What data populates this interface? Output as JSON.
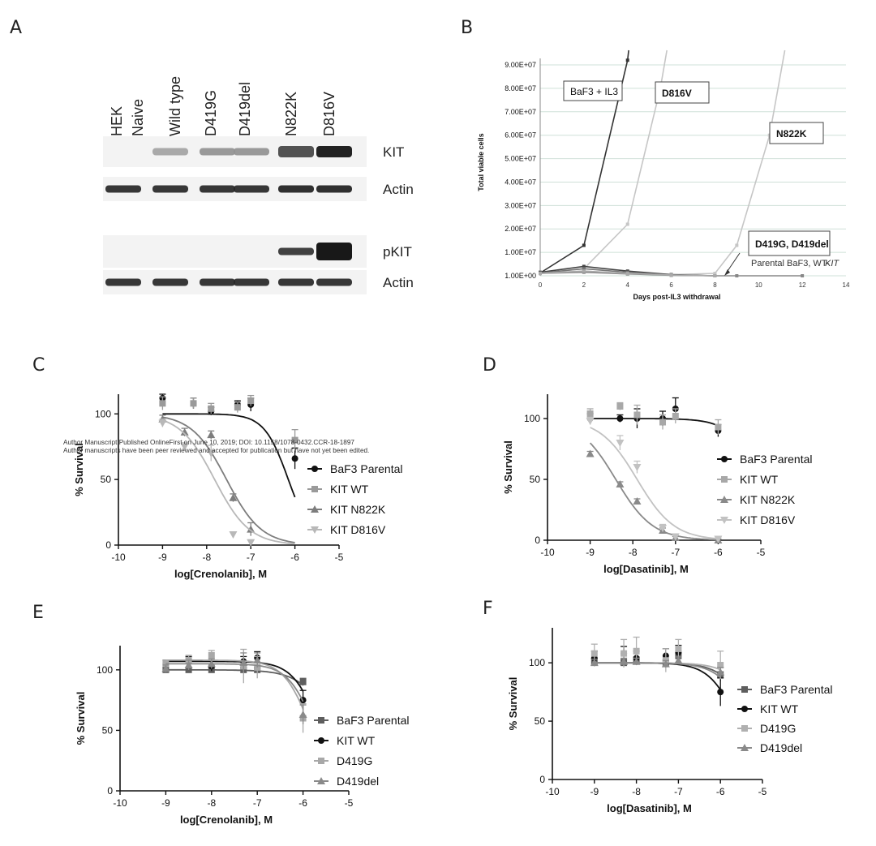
{
  "panel_labels": [
    "A",
    "B",
    "C",
    "D",
    "E",
    "F"
  ],
  "watermark": {
    "line1": "Author Manuscript Published OnlineFirst on June 10, 2019; DOI: 10.1158/1078-0432.CCR-18-1897",
    "line2": "Author manuscripts have been peer reviewed and accepted for publication but have not yet been edited."
  },
  "colors": {
    "black": "#111111",
    "dark": "#6a6a6a",
    "mid": "#8c8c8c",
    "light": "#b4b4b4",
    "lighter": "#cdcdcd"
  },
  "panelA": {
    "lanes": [
      "HEK Naive",
      "Wild type",
      "D419G",
      "D419del",
      "N822K",
      "D816V"
    ],
    "blots": [
      {
        "label": "KIT",
        "intensity": [
          0.0,
          0.3,
          0.38,
          0.38,
          0.72,
          0.95
        ]
      },
      {
        "label": "Actin",
        "intensity": [
          0.85,
          0.85,
          0.85,
          0.85,
          0.88,
          0.88
        ]
      },
      {
        "label": "pKIT",
        "intensity": [
          0.0,
          0.0,
          0.0,
          0.0,
          0.8,
          1.0
        ]
      },
      {
        "label": "Actin",
        "intensity": [
          0.85,
          0.85,
          0.85,
          0.85,
          0.85,
          0.85
        ]
      }
    ]
  },
  "chart_data": [
    {
      "panel": "B",
      "type": "line",
      "xlabel": "Days post-IL3 withdrawal",
      "ylabel": "Total viable cells",
      "xlim": [
        0,
        14
      ],
      "ylim": [
        1,
        90000000
      ],
      "xticks": [
        "0",
        "2",
        "4",
        "6",
        "8",
        "10",
        "12",
        "14"
      ],
      "yticks": [
        "1.00E+00",
        "1.00E+07",
        "2.00E+07",
        "3.00E+07",
        "4.00E+07",
        "5.00E+07",
        "6.00E+07",
        "7.00E+07",
        "8.00E+07",
        "9.00E+07"
      ],
      "annotations": [
        "BaF3 + IL3",
        "D816V",
        "N822K",
        "D419G, D419del"
      ],
      "annotation_line2": "Parental BaF3, WT-",
      "annotation_italic": "KIT",
      "series": [
        {
          "name": "BaF3 + IL3",
          "color": "#333333",
          "points": [
            [
              0,
              1200000
            ],
            [
              2,
              13000000
            ],
            [
              4,
              92000000
            ],
            [
              4.05,
              99000000
            ]
          ]
        },
        {
          "name": "D816V",
          "color": "#c6c6c6",
          "points": [
            [
              0,
              1200000
            ],
            [
              2,
              3000000
            ],
            [
              4,
              22000000
            ],
            [
              5.5,
              80000000
            ],
            [
              5.8,
              99000000
            ]
          ]
        },
        {
          "name": "N822K",
          "color": "#c6c6c6",
          "points": [
            [
              0,
              1200000
            ],
            [
              2,
              2000000
            ],
            [
              4,
              1000000
            ],
            [
              6,
              500000
            ],
            [
              8,
              1000000
            ],
            [
              9,
              13000000
            ],
            [
              10.5,
              60000000
            ],
            [
              11.2,
              99000000
            ]
          ]
        },
        {
          "name": "D419G",
          "color": "#444444",
          "points": [
            [
              0,
              1500000
            ],
            [
              2,
              4000000
            ],
            [
              4,
              2000000
            ],
            [
              6,
              500000
            ],
            [
              8,
              0
            ]
          ]
        },
        {
          "name": "D419del",
          "color": "#777777",
          "points": [
            [
              0,
              1200000
            ],
            [
              2,
              3000000
            ],
            [
              4,
              1500000
            ],
            [
              6,
              300000
            ],
            [
              8,
              0
            ]
          ]
        },
        {
          "name": "Parental BaF3",
          "color": "#888888",
          "points": [
            [
              0,
              1000000
            ],
            [
              2,
              1500000
            ],
            [
              4,
              800000
            ],
            [
              6,
              200000
            ],
            [
              8,
              0
            ],
            [
              9,
              0
            ],
            [
              12,
              0
            ]
          ]
        },
        {
          "name": "WT-KIT",
          "color": "#aaaaaa",
          "points": [
            [
              0,
              1000000
            ],
            [
              2,
              2000000
            ],
            [
              4,
              1000000
            ],
            [
              6,
              300000
            ],
            [
              8,
              0
            ]
          ]
        }
      ]
    },
    {
      "panel": "C",
      "type": "scatter",
      "xlabel": "log[Crenolanib], M",
      "ylabel": "% Survival",
      "xlim": [
        -10,
        -5
      ],
      "ylim": [
        0,
        115
      ],
      "xticks": [
        "-10",
        "-9",
        "-8",
        "-7",
        "-6",
        "-5"
      ],
      "yticks": [
        "0",
        "50",
        "100"
      ],
      "series": [
        {
          "name": "BaF3 Parental",
          "marker": "circle",
          "color": "#111111",
          "x": [
            -9,
            -8.3,
            -7.9,
            -7.3,
            -7,
            -6
          ],
          "y": [
            112,
            108,
            102,
            107,
            107,
            66
          ],
          "err": [
            4,
            4,
            3,
            3,
            5,
            8
          ],
          "fit": {
            "top": 100,
            "bottom": 0,
            "logic50": -6.15,
            "hill": 1.6
          }
        },
        {
          "name": "KIT WT",
          "marker": "square",
          "color": "#9a9a9a",
          "x": [
            -9,
            -8.3,
            -7.9,
            -7.3,
            -7,
            -6
          ],
          "y": [
            108,
            108,
            104,
            105,
            110,
            80
          ],
          "err": [
            5,
            4,
            4,
            4,
            4,
            8
          ],
          "fit": null
        },
        {
          "name": "KIT N822K",
          "marker": "triangle",
          "color": "#7d7d7d",
          "x": [
            -9,
            -8.5,
            -7.9,
            -7.4,
            -7
          ],
          "y": [
            96,
            86,
            84,
            36,
            12
          ],
          "err": [
            3,
            3,
            3,
            3,
            5
          ],
          "fit": {
            "top": 100,
            "bottom": 0,
            "logic50": -7.55,
            "hill": 1.1
          }
        },
        {
          "name": "KIT D816V",
          "marker": "triangle-down",
          "color": "#b8b8b8",
          "x": [
            -9,
            -8.5,
            -7.9,
            -7.4,
            -7
          ],
          "y": [
            93,
            75,
            70,
            8,
            2
          ],
          "err": [
            3,
            3,
            6,
            2,
            2
          ],
          "fit": {
            "top": 100,
            "bottom": 0,
            "logic50": -7.82,
            "hill": 1.1
          }
        }
      ]
    },
    {
      "panel": "D",
      "type": "scatter",
      "xlabel": "log[Dasatinib], M",
      "ylabel": "% Survival",
      "xlim": [
        -10,
        -5
      ],
      "ylim": [
        0,
        120
      ],
      "xticks": [
        "-10",
        "-9",
        "-8",
        "-7",
        "-6",
        "-5"
      ],
      "yticks": [
        "0",
        "50",
        "100"
      ],
      "series": [
        {
          "name": "BaF3 Parental",
          "marker": "circle",
          "color": "#111111",
          "x": [
            -9,
            -8.3,
            -7.9,
            -7.3,
            -7,
            -6
          ],
          "y": [
            100,
            100,
            100,
            100,
            108,
            90
          ],
          "err": [
            4,
            3,
            8,
            6,
            9,
            5
          ],
          "fit": {
            "top": 100,
            "bottom": 0,
            "logic50": -5.0,
            "hill": 1.2
          }
        },
        {
          "name": "KIT WT",
          "marker": "square",
          "color": "#a8a8a8",
          "x": [
            -9,
            -8.3,
            -7.9,
            -7.3,
            -7,
            -6
          ],
          "y": [
            104,
            110,
            103,
            97,
            102,
            93
          ],
          "err": [
            4,
            3,
            8,
            6,
            6,
            6
          ],
          "fit": null
        },
        {
          "name": "KIT N822K",
          "marker": "triangle",
          "color": "#8a8a8a",
          "x": [
            -9,
            -8.3,
            -7.9,
            -7.3,
            -7,
            -6
          ],
          "y": [
            71,
            46,
            32,
            8,
            2,
            0
          ],
          "err": [
            2,
            2,
            2,
            2,
            1,
            1
          ],
          "fit": {
            "top": 100,
            "bottom": 0,
            "logic50": -8.4,
            "hill": 1.0
          }
        },
        {
          "name": "KIT D816V",
          "marker": "triangle-down",
          "color": "#c2c2c2",
          "x": [
            -9,
            -8.3,
            -7.9,
            -7.3,
            -7,
            -6
          ],
          "y": [
            98,
            80,
            60,
            10,
            3,
            1
          ],
          "err": [
            3,
            6,
            5,
            3,
            2,
            1
          ],
          "fit": {
            "top": 100,
            "bottom": 0,
            "logic50": -7.9,
            "hill": 1.0
          }
        }
      ]
    },
    {
      "panel": "E",
      "type": "scatter",
      "xlabel": "log[Crenolanib], M",
      "ylabel": "% Survival",
      "xlim": [
        -10,
        -5
      ],
      "ylim": [
        0,
        120
      ],
      "xticks": [
        "-10",
        "-9",
        "-8",
        "-7",
        "-6",
        "-5"
      ],
      "yticks": [
        "0",
        "50",
        "100"
      ],
      "series": [
        {
          "name": "BaF3 Parental",
          "marker": "square",
          "color": "#5e5e5e",
          "x": [
            -9,
            -8.5,
            -8,
            -7.3,
            -7,
            -6
          ],
          "y": [
            100,
            100,
            100,
            100,
            100,
            90
          ],
          "err": [
            2,
            2,
            2,
            2,
            2,
            3
          ],
          "fit": {
            "top": 100,
            "bottom": 0,
            "logic50": -5.3,
            "hill": 1.2
          }
        },
        {
          "name": "KIT WT",
          "marker": "circle",
          "color": "#111111",
          "x": [
            -9,
            -8.5,
            -8,
            -7.3,
            -7,
            -6
          ],
          "y": [
            105,
            108,
            103,
            107,
            110,
            75
          ],
          "err": [
            3,
            3,
            4,
            4,
            5,
            8
          ],
          "fit": {
            "top": 107,
            "bottom": 0,
            "logic50": -5.65,
            "hill": 1.5
          }
        },
        {
          "name": "D419G",
          "marker": "square",
          "color": "#a8a8a8",
          "x": [
            -9,
            -8.5,
            -8,
            -7.3,
            -7,
            -6
          ],
          "y": [
            105,
            108,
            112,
            103,
            102,
            60
          ],
          "err": [
            3,
            4,
            4,
            14,
            9,
            12
          ],
          "fit": {
            "top": 108,
            "bottom": 0,
            "logic50": -5.85,
            "hill": 1.5
          }
        },
        {
          "name": "D419del",
          "marker": "triangle",
          "color": "#8a8a8a",
          "x": [
            -9,
            -8.5,
            -8,
            -7.3,
            -7,
            -6
          ],
          "y": [
            101,
            104,
            105,
            106,
            108,
            63
          ],
          "err": [
            3,
            4,
            4,
            8,
            6,
            8
          ],
          "fit": {
            "top": 105,
            "bottom": 0,
            "logic50": -5.75,
            "hill": 1.5
          }
        }
      ]
    },
    {
      "panel": "F",
      "type": "scatter",
      "xlabel": "log[Dasatinib], M",
      "ylabel": "% Survival",
      "xlim": [
        -10,
        -5
      ],
      "ylim": [
        0,
        130
      ],
      "xticks": [
        "-10",
        "-9",
        "-8",
        "-7",
        "-6",
        "-5"
      ],
      "yticks": [
        "0",
        "50",
        "100"
      ],
      "series": [
        {
          "name": "BaF3 Parental",
          "marker": "square",
          "color": "#5e5e5e",
          "x": [
            -9,
            -8.3,
            -8,
            -7.3,
            -7,
            -6
          ],
          "y": [
            101,
            100,
            102,
            100,
            106,
            90
          ],
          "err": [
            3,
            3,
            3,
            3,
            4,
            6
          ],
          "fit": {
            "top": 100,
            "bottom": 0,
            "logic50": -5.2,
            "hill": 1.2
          }
        },
        {
          "name": "KIT WT",
          "marker": "circle",
          "color": "#111111",
          "x": [
            -9,
            -8.3,
            -8,
            -7.3,
            -7,
            -6
          ],
          "y": [
            104,
            108,
            104,
            106,
            109,
            75
          ],
          "err": [
            6,
            6,
            6,
            6,
            6,
            12
          ],
          "fit": {
            "top": 100,
            "bottom": 0,
            "logic50": -5.6,
            "hill": 1.3
          }
        },
        {
          "name": "D419G",
          "marker": "square",
          "color": "#b0b0b0",
          "x": [
            -9,
            -8.3,
            -8,
            -7.3,
            -7,
            -6
          ],
          "y": [
            108,
            108,
            110,
            102,
            112,
            98
          ],
          "err": [
            8,
            12,
            12,
            10,
            8,
            12
          ],
          "fit": {
            "top": 100,
            "bottom": 0,
            "logic50": -5.0,
            "hill": 1.2
          }
        },
        {
          "name": "D419del",
          "marker": "triangle",
          "color": "#8a8a8a",
          "x": [
            -9,
            -8.3,
            -8,
            -7.3,
            -7,
            -6
          ],
          "y": [
            100,
            101,
            101,
            99,
            102,
            92
          ],
          "err": [
            3,
            3,
            3,
            3,
            3,
            4
          ],
          "fit": {
            "top": 100,
            "bottom": 0,
            "logic50": -5.3,
            "hill": 1.2
          }
        }
      ]
    }
  ]
}
